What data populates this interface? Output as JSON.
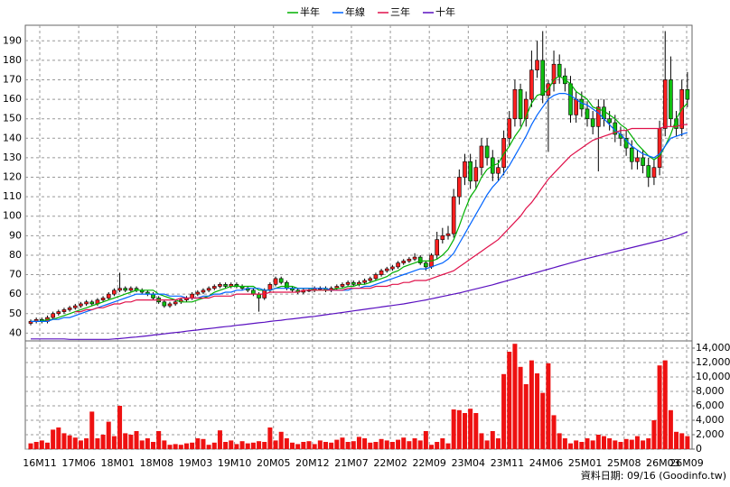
{
  "chart_data": {
    "type": "candlestick",
    "legend": "top",
    "grid": true,
    "up_color": "#ff2020",
    "down_color": "#10c010",
    "categories": [
      "16M11",
      null,
      null,
      null,
      null,
      null,
      null,
      "17M06",
      null,
      null,
      null,
      null,
      null,
      null,
      "18M01",
      null,
      null,
      null,
      null,
      null,
      null,
      "18M08",
      null,
      null,
      null,
      null,
      null,
      null,
      "19M03",
      null,
      null,
      null,
      null,
      null,
      null,
      "19M10",
      null,
      null,
      null,
      null,
      null,
      null,
      "20M05",
      null,
      null,
      null,
      null,
      null,
      null,
      "20M12",
      null,
      null,
      null,
      null,
      null,
      null,
      "21M07",
      null,
      null,
      null,
      null,
      null,
      null,
      "22M02",
      null,
      null,
      null,
      null,
      null,
      null,
      "22M09",
      null,
      null,
      null,
      null,
      null,
      null,
      "23M04",
      null,
      null,
      null,
      null,
      null,
      null,
      "23M11",
      null,
      null,
      null,
      null,
      null,
      null,
      "24M06",
      null,
      null,
      null,
      null,
      null,
      null,
      "25M01",
      null,
      null,
      null,
      null,
      null,
      null,
      "25M08",
      null,
      null,
      null,
      null,
      null,
      null,
      "26M03",
      null,
      null,
      null,
      null,
      null,
      "26M09"
    ],
    "open": [
      45,
      46,
      47,
      46,
      48,
      50,
      51,
      52,
      53,
      54,
      55,
      56,
      55,
      57,
      58,
      60,
      62,
      63,
      62,
      63,
      62,
      61,
      60,
      58,
      56,
      54,
      55,
      56,
      57,
      58,
      60,
      61,
      62,
      63,
      64,
      65,
      64,
      65,
      64,
      63,
      62,
      60,
      58,
      62,
      65,
      68,
      66,
      63,
      62,
      61,
      62,
      62,
      63,
      63,
      62,
      63,
      64,
      65,
      66,
      65,
      66,
      67,
      68,
      70,
      72,
      73,
      74,
      76,
      77,
      78,
      79,
      76,
      74,
      80,
      88,
      90,
      91,
      110,
      120,
      128,
      118,
      125,
      136,
      130,
      122,
      125,
      140,
      150,
      165,
      150,
      160,
      175,
      180,
      162,
      168,
      178,
      172,
      168,
      152,
      160,
      155,
      150,
      146,
      156,
      150,
      148,
      142,
      140,
      135,
      128,
      130,
      126,
      120,
      125,
      145,
      170,
      150,
      145,
      165
    ],
    "high": [
      47,
      48,
      48,
      49,
      51,
      52,
      53,
      54,
      55,
      56,
      57,
      57,
      58,
      59,
      61,
      63,
      71,
      64,
      64,
      64,
      63,
      62,
      61,
      59,
      57,
      56,
      57,
      58,
      59,
      61,
      62,
      63,
      64,
      65,
      66,
      66,
      66,
      66,
      65,
      64,
      63,
      61,
      63,
      66,
      69,
      69,
      67,
      64,
      63,
      63,
      63,
      64,
      64,
      64,
      64,
      65,
      66,
      67,
      67,
      67,
      68,
      69,
      71,
      73,
      74,
      75,
      77,
      78,
      79,
      81,
      80,
      77,
      81,
      92,
      94,
      95,
      114,
      124,
      132,
      132,
      129,
      140,
      140,
      134,
      129,
      144,
      154,
      170,
      168,
      164,
      185,
      190,
      195,
      170,
      185,
      183,
      176,
      172,
      164,
      164,
      159,
      154,
      160,
      160,
      154,
      152,
      146,
      144,
      139,
      134,
      134,
      130,
      129,
      149,
      195,
      182,
      154,
      170,
      174
    ],
    "low": [
      44,
      45,
      45,
      45,
      47,
      49,
      50,
      51,
      52,
      53,
      54,
      54,
      54,
      56,
      57,
      59,
      61,
      61,
      61,
      61,
      60,
      59,
      57,
      55,
      53,
      53,
      54,
      55,
      56,
      57,
      59,
      60,
      61,
      62,
      63,
      63,
      63,
      63,
      62,
      61,
      59,
      51,
      57,
      61,
      64,
      65,
      62,
      61,
      60,
      60,
      61,
      61,
      62,
      61,
      61,
      62,
      63,
      64,
      64,
      64,
      65,
      66,
      67,
      69,
      71,
      72,
      73,
      75,
      76,
      77,
      75,
      72,
      73,
      78,
      86,
      88,
      89,
      106,
      116,
      114,
      114,
      121,
      126,
      118,
      118,
      121,
      136,
      146,
      146,
      146,
      156,
      171,
      158,
      133,
      164,
      168,
      164,
      148,
      148,
      151,
      146,
      142,
      123,
      146,
      144,
      138,
      136,
      131,
      124,
      124,
      122,
      115,
      116,
      121,
      141,
      146,
      141,
      141,
      156
    ],
    "close": [
      46,
      47,
      46,
      48,
      50,
      51,
      52,
      53,
      54,
      55,
      56,
      55,
      57,
      58,
      60,
      62,
      63,
      62,
      63,
      62,
      61,
      60,
      58,
      56,
      54,
      55,
      56,
      57,
      58,
      60,
      61,
      62,
      63,
      64,
      65,
      64,
      65,
      64,
      63,
      62,
      60,
      58,
      62,
      65,
      68,
      66,
      63,
      62,
      61,
      62,
      62,
      63,
      63,
      62,
      63,
      64,
      65,
      66,
      65,
      66,
      67,
      68,
      70,
      72,
      73,
      74,
      76,
      77,
      78,
      79,
      76,
      74,
      80,
      88,
      90,
      91,
      110,
      120,
      128,
      118,
      125,
      136,
      130,
      122,
      125,
      140,
      150,
      165,
      150,
      160,
      175,
      180,
      162,
      168,
      178,
      172,
      168,
      152,
      160,
      155,
      150,
      146,
      156,
      150,
      148,
      142,
      140,
      135,
      128,
      130,
      126,
      120,
      125,
      145,
      170,
      150,
      145,
      165,
      160
    ],
    "series": [
      {
        "name": "半年",
        "color": "#00b000",
        "values": [
          46,
          46,
          46,
          47,
          47,
          48,
          49,
          50,
          51,
          52,
          53,
          54,
          55,
          56,
          57,
          58,
          59,
          60,
          61,
          62,
          62,
          62,
          62,
          60,
          59,
          58,
          57,
          56,
          56,
          56,
          57,
          58,
          59,
          61,
          62,
          63,
          64,
          64,
          64,
          64,
          64,
          62,
          62,
          62,
          63,
          64,
          64,
          64,
          63,
          63,
          63,
          62,
          62,
          62,
          62,
          63,
          63,
          64,
          64,
          65,
          65,
          66,
          67,
          68,
          69,
          71,
          72,
          74,
          75,
          76,
          77,
          77,
          77,
          78,
          80,
          83,
          88,
          95,
          103,
          110,
          114,
          120,
          124,
          126,
          127,
          132,
          136,
          141,
          145,
          151,
          158,
          162,
          163,
          165,
          170,
          172,
          170,
          168,
          164,
          162,
          160,
          156,
          155,
          154,
          152,
          150,
          147,
          145,
          141,
          137,
          134,
          131,
          129,
          131,
          136,
          142,
          150,
          155,
          158
        ]
      },
      {
        "name": "年線",
        "color": "#0064ff",
        "values": [
          46,
          46,
          46,
          46,
          47,
          47,
          48,
          48,
          49,
          50,
          51,
          52,
          53,
          54,
          55,
          56,
          57,
          58,
          59,
          60,
          60,
          60,
          60,
          60,
          60,
          59,
          59,
          59,
          58,
          58,
          58,
          59,
          59,
          60,
          60,
          61,
          61,
          62,
          62,
          63,
          63,
          63,
          62,
          62,
          63,
          63,
          63,
          63,
          63,
          63,
          63,
          63,
          63,
          63,
          62,
          62,
          62,
          62,
          63,
          63,
          64,
          64,
          65,
          66,
          67,
          68,
          69,
          70,
          71,
          72,
          73,
          73,
          74,
          75,
          76,
          78,
          81,
          86,
          91,
          96,
          101,
          106,
          111,
          115,
          118,
          122,
          126,
          131,
          136,
          141,
          147,
          152,
          156,
          160,
          162,
          163,
          163,
          162,
          160,
          158,
          157,
          155,
          153,
          150,
          147,
          144,
          142,
          139,
          136,
          134,
          132,
          131,
          130,
          132,
          136,
          140,
          141,
          142,
          143
        ]
      },
      {
        "name": "三年",
        "color": "#e0104a",
        "values": [
          null,
          null,
          null,
          null,
          null,
          null,
          null,
          null,
          51,
          51,
          52,
          52,
          53,
          53,
          54,
          55,
          55,
          56,
          56,
          57,
          57,
          57,
          57,
          57,
          57,
          57,
          57,
          58,
          58,
          58,
          58,
          58,
          58,
          59,
          59,
          59,
          59,
          60,
          60,
          60,
          60,
          60,
          60,
          61,
          61,
          61,
          61,
          61,
          61,
          62,
          62,
          62,
          62,
          62,
          62,
          62,
          62,
          63,
          63,
          63,
          63,
          63,
          64,
          64,
          64,
          65,
          65,
          66,
          66,
          67,
          67,
          67,
          68,
          69,
          70,
          71,
          72,
          74,
          76,
          78,
          80,
          82,
          84,
          86,
          88,
          91,
          94,
          97,
          100,
          104,
          107,
          111,
          115,
          119,
          122,
          125,
          128,
          131,
          133,
          135,
          137,
          139,
          140,
          141,
          142,
          143,
          144,
          144,
          145,
          145,
          145,
          145,
          145,
          145,
          146,
          146,
          146,
          147,
          147
        ]
      },
      {
        "name": "十年",
        "color": "#5a10c0",
        "values": [
          37,
          37,
          37,
          37,
          37,
          37,
          37,
          36.8,
          36.8,
          36.8,
          36.8,
          36.8,
          36.8,
          36.8,
          36.8,
          37,
          37.2,
          37.5,
          37.8,
          38,
          38.3,
          38.6,
          39,
          39.3,
          39.6,
          40,
          40.3,
          40.6,
          41,
          41.3,
          41.6,
          42,
          42.3,
          42.6,
          43,
          43.3,
          43.6,
          44,
          44.3,
          44.6,
          45,
          45.3,
          45.6,
          46,
          46.3,
          46.6,
          47,
          47.3,
          47.6,
          48,
          48.3,
          48.6,
          49,
          49.4,
          49.8,
          50.2,
          50.6,
          51,
          51.4,
          51.8,
          52.2,
          52.6,
          53,
          53.4,
          53.8,
          54.2,
          54.6,
          55,
          55.5,
          56,
          56.5,
          57,
          57.6,
          58.2,
          58.8,
          59.4,
          60,
          60.6,
          61.3,
          62,
          62.7,
          63.4,
          64.1,
          64.8,
          65.6,
          66.4,
          67.2,
          68,
          68.8,
          69.6,
          70.4,
          71.2,
          72,
          72.8,
          73.6,
          74.4,
          75.2,
          76,
          76.8,
          77.6,
          78.3,
          79,
          79.7,
          80.4,
          81.1,
          81.8,
          82.5,
          83.2,
          83.9,
          84.6,
          85.3,
          86,
          86.7,
          87.4,
          88.1,
          88.9,
          89.8,
          90.8,
          92
        ]
      }
    ],
    "ylim": [
      36,
      198
    ],
    "yticks": [
      40,
      50,
      60,
      70,
      80,
      90,
      100,
      110,
      120,
      130,
      140,
      150,
      160,
      170,
      180,
      190
    ],
    "volume": {
      "color": "#ee1111",
      "ylim": [
        0,
        15000
      ],
      "yticks": [
        0,
        {
          "value": 2000,
          "label": "2,000"
        },
        {
          "value": 4000,
          "label": "4,000"
        },
        {
          "value": 6000,
          "label": "6,000"
        },
        {
          "value": 8000,
          "label": "8,000"
        },
        {
          "value": 10000,
          "label": "10,000"
        },
        {
          "value": 12000,
          "label": "12,000"
        },
        {
          "value": 14000,
          "label": "14,000"
        }
      ],
      "values": [
        800,
        1000,
        1200,
        900,
        2700,
        3000,
        2200,
        1900,
        1600,
        1200,
        1500,
        5200,
        1500,
        2000,
        3800,
        1800,
        6000,
        2200,
        2000,
        2500,
        1200,
        1500,
        1000,
        2500,
        1200,
        600,
        700,
        600,
        800,
        900,
        1500,
        1400,
        600,
        900,
        2600,
        1000,
        1200,
        700,
        1100,
        800,
        900,
        1100,
        1000,
        3000,
        1200,
        2400,
        1500,
        900,
        700,
        1000,
        1100,
        700,
        1200,
        1000,
        900,
        1300,
        1600,
        1000,
        1100,
        1700,
        1500,
        900,
        1000,
        1400,
        1200,
        1000,
        1300,
        1600,
        1100,
        1500,
        1200,
        2500,
        600,
        1000,
        1500,
        800,
        5500,
        5400,
        5000,
        5600,
        5000,
        2200,
        1200,
        2500,
        1500,
        10400,
        13500,
        14600,
        11400,
        9000,
        12300,
        10500,
        7800,
        11900,
        4700,
        2200,
        1500,
        800,
        1200,
        1000,
        1500,
        1200,
        2000,
        1800,
        1500,
        1200,
        1000,
        1400,
        1300,
        1800,
        1200,
        1500,
        4000,
        11600,
        12300,
        5400,
        2400,
        2200,
        1800
      ]
    },
    "source": "資料日期: 09/16  (Goodinfo.tw)"
  }
}
